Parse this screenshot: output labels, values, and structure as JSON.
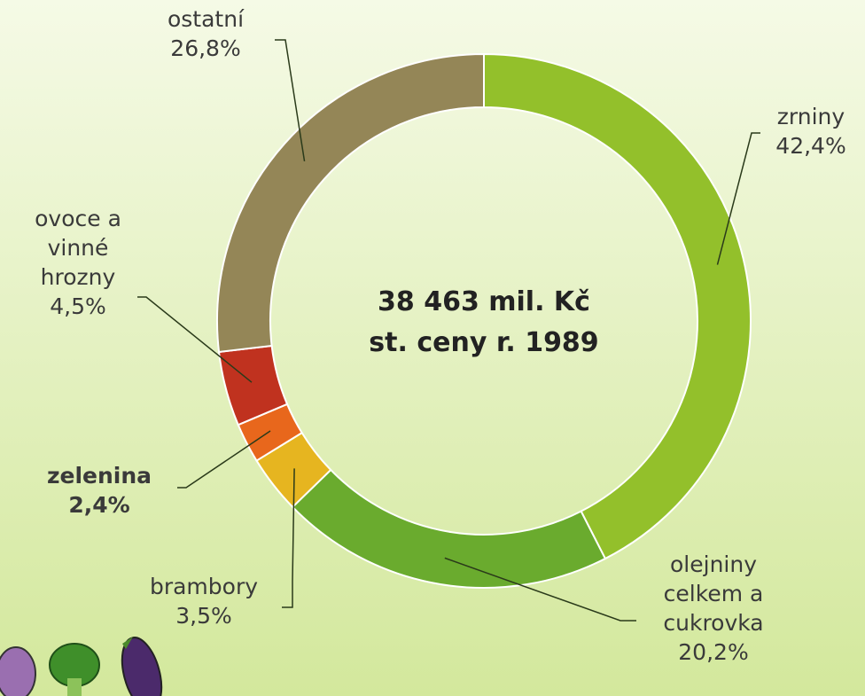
{
  "chart_data": {
    "type": "donut",
    "center_text": [
      "38 463 mil. Kč",
      "st. ceny r. 1989"
    ],
    "categories": [
      "zrniny",
      "olejniny\ncelkem a\ncukrovka",
      "brambory",
      "zelenina",
      "ovoce a\nvinné\nhrozny",
      "ostatní"
    ],
    "values": [
      42.4,
      20.2,
      3.5,
      2.4,
      4.5,
      26.8
    ],
    "value_labels": [
      "42,4%",
      "20,2%",
      "3,5%",
      "2,4%",
      "4,5%",
      "26,8%"
    ],
    "colors": [
      "#93c02b",
      "#6aab2e",
      "#e6b520",
      "#e8671c",
      "#c0321f",
      "#948657"
    ]
  }
}
